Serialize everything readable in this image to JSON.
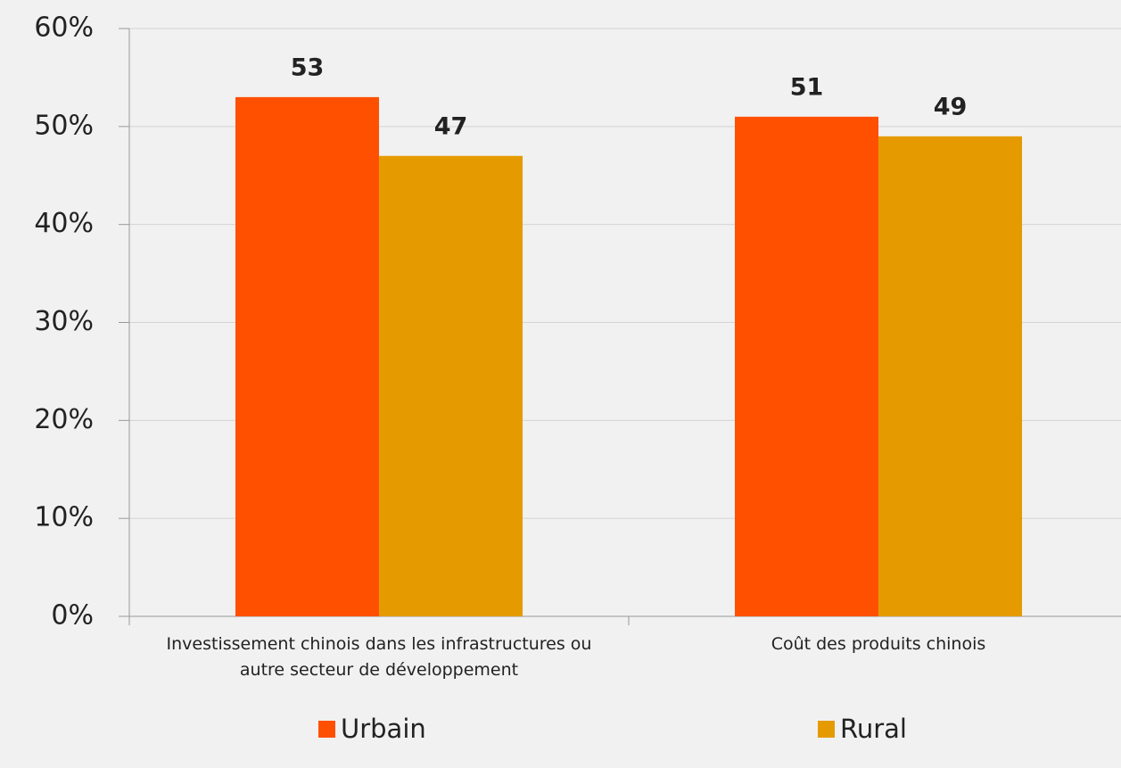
{
  "chart_data": {
    "type": "bar",
    "categories": [
      "Investissement chinois dans les infrastructures ou autre secteur de développement",
      "Coût des produits chinois"
    ],
    "series": [
      {
        "name": "Urbain",
        "color": "#ff5000",
        "values": [
          53,
          51
        ]
      },
      {
        "name": "Rural",
        "color": "#e59b00",
        "values": [
          47,
          49
        ]
      }
    ],
    "ylim": [
      0,
      60
    ],
    "yticks": [
      {
        "value": 0,
        "label": "0%"
      },
      {
        "value": 10,
        "label": "10%"
      },
      {
        "value": 20,
        "label": "20%"
      },
      {
        "value": 30,
        "label": "30%"
      },
      {
        "value": 40,
        "label": "40%"
      },
      {
        "value": 50,
        "label": "50%"
      },
      {
        "value": 60,
        "label": "60%"
      }
    ],
    "grid": true,
    "legend": "bottom"
  }
}
